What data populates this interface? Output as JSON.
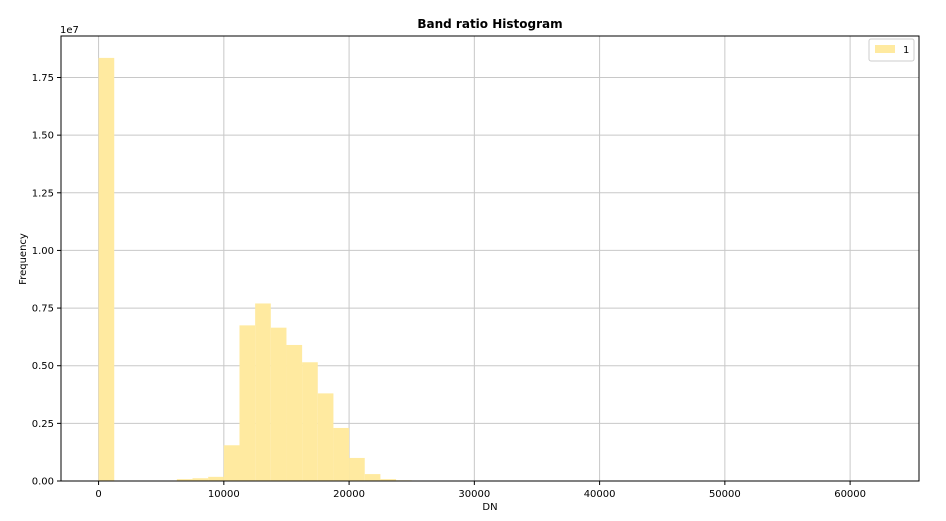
{
  "chart_data": {
    "type": "bar",
    "title": "Band ratio Histogram",
    "xlabel": "DN",
    "ylabel": "Frequency",
    "y_offset_label": "1e7",
    "xlim": [
      -3000,
      65500
    ],
    "ylim": [
      0,
      1.93
    ],
    "x_ticks": [
      0,
      10000,
      20000,
      30000,
      40000,
      50000,
      60000
    ],
    "x_tick_labels": [
      "0",
      "10000",
      "20000",
      "30000",
      "40000",
      "50000",
      "60000"
    ],
    "y_ticks": [
      0.0,
      0.25,
      0.5,
      0.75,
      1.0,
      1.25,
      1.5,
      1.75
    ],
    "y_tick_labels": [
      "0.00",
      "0.25",
      "0.50",
      "0.75",
      "1.00",
      "1.25",
      "1.50",
      "1.75"
    ],
    "grid": true,
    "legend_position": "top-right",
    "bar_color": "#ffeaa0",
    "series": [
      {
        "name": "1",
        "bins": [
          {
            "x0": 0,
            "x1": 1250,
            "value": 1.835
          },
          {
            "x0": 6250,
            "x1": 7500,
            "value": 0.008
          },
          {
            "x0": 7500,
            "x1": 8750,
            "value": 0.012
          },
          {
            "x0": 8750,
            "x1": 10000,
            "value": 0.018
          },
          {
            "x0": 10000,
            "x1": 11250,
            "value": 0.155
          },
          {
            "x0": 11250,
            "x1": 12500,
            "value": 0.675
          },
          {
            "x0": 12500,
            "x1": 13750,
            "value": 0.77
          },
          {
            "x0": 13750,
            "x1": 15000,
            "value": 0.665
          },
          {
            "x0": 15000,
            "x1": 16250,
            "value": 0.59
          },
          {
            "x0": 16250,
            "x1": 17500,
            "value": 0.515
          },
          {
            "x0": 17500,
            "x1": 18750,
            "value": 0.38
          },
          {
            "x0": 18750,
            "x1": 20000,
            "value": 0.23
          },
          {
            "x0": 20000,
            "x1": 21250,
            "value": 0.1
          },
          {
            "x0": 21250,
            "x1": 22500,
            "value": 0.03
          },
          {
            "x0": 22500,
            "x1": 23750,
            "value": 0.008
          },
          {
            "x0": 23750,
            "x1": 25000,
            "value": 0.003
          }
        ]
      }
    ]
  }
}
